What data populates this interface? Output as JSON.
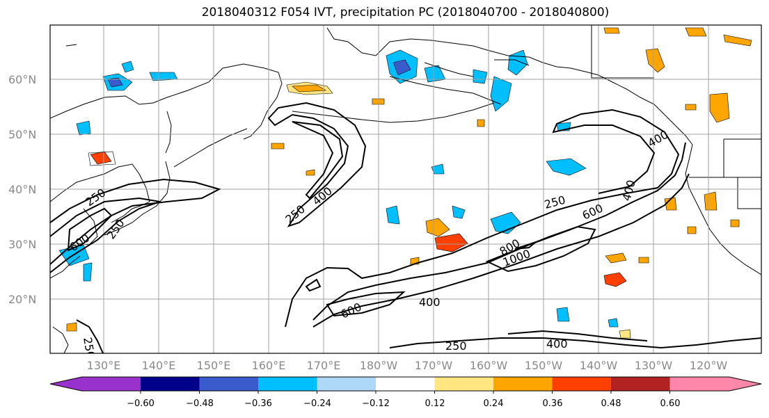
{
  "title": "2018040312 F054 IVT, precipitation PC (2018040700 - 2018040800)",
  "map": {
    "lat_labels": [
      "20°N",
      "30°N",
      "40°N",
      "50°N",
      "60°N"
    ],
    "lon_labels": [
      "130°E",
      "140°E",
      "150°E",
      "160°E",
      "170°E",
      "180°W",
      "170°W",
      "160°W",
      "150°W",
      "140°W",
      "130°W",
      "120°W"
    ],
    "ivt_contour_labels": [
      "250",
      "400",
      "600",
      "800",
      "1000",
      "250",
      "400",
      "600",
      "250",
      "400",
      "250",
      "400",
      "600",
      "250",
      "400",
      "250",
      "400"
    ],
    "colors": {
      "coast": "#000000",
      "grid": "#a0a0a0",
      "contour": "#000000"
    }
  },
  "colorbar": {
    "tick_labels": [
      "−0.60",
      "−0.48",
      "−0.36",
      "−0.24",
      "−0.12",
      "0.12",
      "0.24",
      "0.36",
      "0.48",
      "0.60"
    ],
    "colors": [
      "#9932cc",
      "#00008b",
      "#3a5bcc",
      "#00bfff",
      "#add8f7",
      "#ffffff",
      "#ffe680",
      "#ffa500",
      "#ff4000",
      "#b22222",
      "#ff88aa"
    ]
  }
}
